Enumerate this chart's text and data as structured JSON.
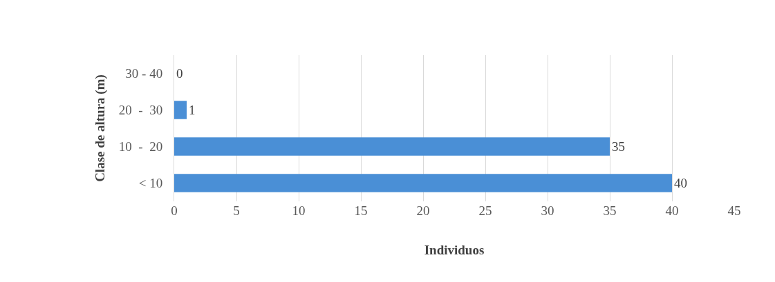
{
  "chart_data": {
    "type": "bar",
    "orientation": "horizontal",
    "xlabel": "Individuos",
    "ylabel": "Clase de altura (m)",
    "categories": [
      "30 - 40",
      "20  -  30",
      "10  -  20",
      "< 10"
    ],
    "values": [
      0,
      1,
      35,
      40
    ],
    "color": "#4a8fd6",
    "xlim": [
      0,
      45
    ],
    "xticks": [
      0,
      5,
      10,
      15,
      20,
      25,
      30,
      35,
      40,
      45
    ],
    "grid": "x",
    "data_labels": true,
    "legend": false
  }
}
